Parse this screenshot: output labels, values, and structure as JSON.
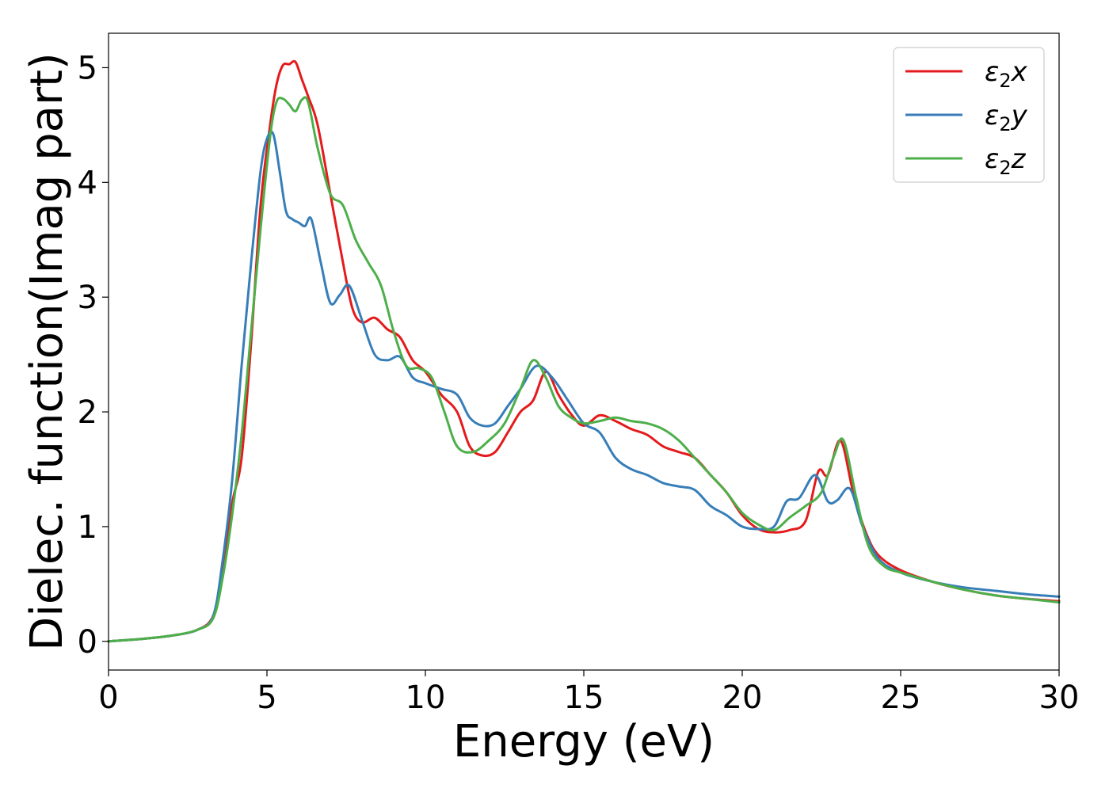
{
  "chart_data": {
    "type": "line",
    "xlabel": "Energy (eV)",
    "ylabel": "Dielec. function(Imag part)",
    "xlim": [
      0,
      30
    ],
    "ylim": [
      -0.25,
      5.3
    ],
    "xticks": [
      0,
      5,
      10,
      15,
      20,
      25,
      30
    ],
    "xtick_labels": [
      "0",
      "5",
      "10",
      "15",
      "20",
      "25",
      "30"
    ],
    "yticks": [
      0,
      1,
      2,
      3,
      4,
      5
    ],
    "ytick_labels": [
      "0",
      "1",
      "2",
      "3",
      "4",
      "5"
    ],
    "grid": false,
    "legend_position": "top-right",
    "series": [
      {
        "name": "ε2x",
        "label_main": "ε",
        "label_sub": "2",
        "label_tail": "x",
        "color": "#e41a1c",
        "x": [
          0,
          1,
          2,
          2.8,
          3.3,
          3.6,
          3.9,
          4.2,
          4.5,
          4.8,
          5.1,
          5.3,
          5.5,
          5.7,
          5.9,
          6.1,
          6.3,
          6.6,
          7.0,
          7.4,
          7.7,
          8.0,
          8.4,
          8.8,
          9.2,
          9.6,
          10.0,
          10.5,
          11.0,
          11.4,
          11.8,
          12.2,
          12.6,
          13.0,
          13.4,
          13.8,
          14.2,
          14.6,
          15.0,
          15.5,
          16.0,
          16.5,
          17.0,
          17.5,
          18.0,
          18.5,
          19.0,
          19.5,
          20.0,
          20.5,
          21.0,
          21.5,
          22.0,
          22.4,
          22.7,
          23.1,
          23.5,
          23.9,
          24.3,
          25.0,
          26.0,
          27.0,
          28.0,
          29.0,
          30.0
        ],
        "y": [
          0.0,
          0.02,
          0.05,
          0.1,
          0.22,
          0.6,
          1.2,
          1.6,
          2.6,
          3.8,
          4.5,
          4.85,
          5.02,
          5.03,
          5.05,
          4.9,
          4.75,
          4.5,
          3.9,
          3.3,
          2.9,
          2.78,
          2.82,
          2.72,
          2.65,
          2.45,
          2.35,
          2.15,
          2.0,
          1.7,
          1.62,
          1.65,
          1.82,
          2.0,
          2.1,
          2.35,
          2.15,
          1.98,
          1.88,
          1.97,
          1.92,
          1.85,
          1.8,
          1.7,
          1.65,
          1.6,
          1.45,
          1.3,
          1.1,
          0.98,
          0.95,
          0.97,
          1.05,
          1.48,
          1.45,
          1.75,
          1.3,
          0.95,
          0.75,
          0.62,
          0.52,
          0.45,
          0.4,
          0.37,
          0.35
        ]
      },
      {
        "name": "ε2y",
        "label_main": "ε",
        "label_sub": "2",
        "label_tail": "y",
        "color": "#377eb8",
        "x": [
          0,
          1,
          2,
          2.8,
          3.3,
          3.6,
          3.9,
          4.2,
          4.5,
          4.8,
          5.0,
          5.2,
          5.4,
          5.6,
          5.8,
          6.0,
          6.2,
          6.4,
          6.7,
          7.0,
          7.3,
          7.6,
          8.0,
          8.4,
          8.8,
          9.2,
          9.6,
          10.0,
          10.5,
          11.0,
          11.4,
          11.8,
          12.2,
          12.6,
          13.0,
          13.5,
          14.0,
          14.5,
          15.0,
          15.5,
          16.0,
          16.5,
          17.0,
          17.5,
          18.0,
          18.5,
          19.0,
          19.5,
          20.0,
          20.5,
          21.0,
          21.4,
          21.8,
          22.3,
          22.7,
          23.0,
          23.4,
          23.8,
          24.3,
          25.0,
          26.0,
          27.0,
          28.0,
          29.0,
          30.0
        ],
        "y": [
          0.0,
          0.02,
          0.05,
          0.1,
          0.22,
          0.7,
          1.4,
          2.4,
          3.3,
          4.1,
          4.38,
          4.42,
          4.1,
          3.75,
          3.68,
          3.65,
          3.62,
          3.68,
          3.3,
          2.95,
          3.02,
          3.1,
          2.8,
          2.5,
          2.45,
          2.48,
          2.3,
          2.25,
          2.2,
          2.15,
          1.95,
          1.88,
          1.9,
          2.05,
          2.2,
          2.4,
          2.3,
          2.1,
          1.9,
          1.82,
          1.6,
          1.5,
          1.45,
          1.38,
          1.35,
          1.32,
          1.18,
          1.1,
          1.0,
          0.98,
          1.0,
          1.22,
          1.25,
          1.45,
          1.22,
          1.23,
          1.33,
          1.0,
          0.72,
          0.6,
          0.52,
          0.47,
          0.44,
          0.41,
          0.39
        ]
      },
      {
        "name": "ε2z",
        "label_main": "ε",
        "label_sub": "2",
        "label_tail": "z",
        "color": "#4daf4a",
        "x": [
          0,
          1,
          2,
          2.8,
          3.3,
          3.6,
          3.9,
          4.2,
          4.5,
          4.8,
          5.1,
          5.3,
          5.5,
          5.7,
          5.9,
          6.1,
          6.3,
          6.6,
          7.0,
          7.4,
          7.8,
          8.2,
          8.6,
          9.0,
          9.4,
          9.8,
          10.2,
          10.6,
          11.0,
          11.5,
          12.0,
          12.5,
          13.0,
          13.4,
          13.8,
          14.2,
          14.6,
          15.0,
          15.5,
          16.0,
          16.5,
          17.0,
          17.5,
          18.0,
          18.5,
          19.0,
          19.5,
          20.0,
          20.5,
          21.0,
          21.5,
          22.0,
          22.5,
          22.9,
          23.2,
          23.6,
          24.0,
          24.5,
          25.0,
          26.0,
          27.0,
          28.0,
          29.0,
          30.0
        ],
        "y": [
          0.0,
          0.02,
          0.05,
          0.1,
          0.2,
          0.55,
          1.1,
          1.8,
          2.7,
          3.6,
          4.4,
          4.7,
          4.73,
          4.68,
          4.62,
          4.72,
          4.7,
          4.3,
          3.9,
          3.8,
          3.5,
          3.3,
          3.1,
          2.7,
          2.4,
          2.38,
          2.3,
          2.0,
          1.7,
          1.65,
          1.75,
          1.9,
          2.2,
          2.45,
          2.3,
          2.05,
          1.95,
          1.9,
          1.92,
          1.95,
          1.92,
          1.9,
          1.85,
          1.75,
          1.6,
          1.45,
          1.3,
          1.12,
          1.02,
          0.97,
          1.08,
          1.18,
          1.3,
          1.62,
          1.75,
          1.25,
          0.82,
          0.65,
          0.6,
          0.52,
          0.45,
          0.4,
          0.37,
          0.34
        ]
      }
    ]
  }
}
